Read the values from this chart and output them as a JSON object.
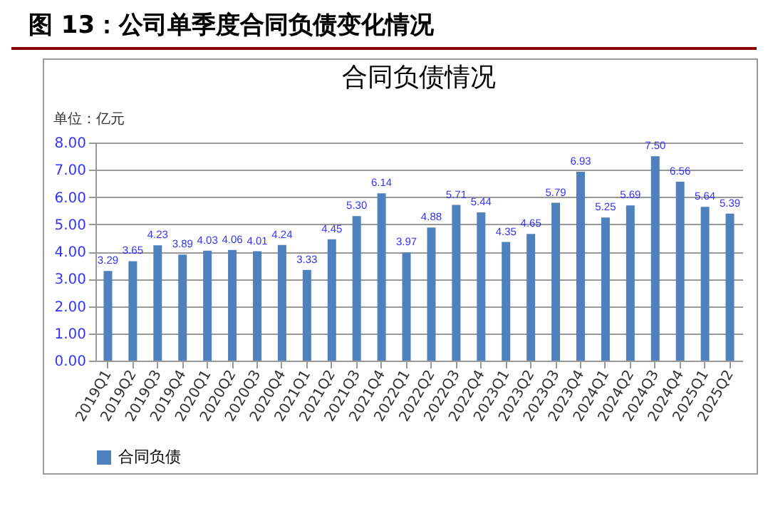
{
  "chart_data": {
    "type": "bar",
    "title": "图 13：公司单季度合同负债变化情况",
    "subtitle": "合同负债情况",
    "ylabel": "单位：亿元",
    "categories": [
      "2019Q1",
      "2019Q2",
      "2019Q3",
      "2019Q4",
      "2020Q1",
      "2020Q2",
      "2020Q3",
      "2020Q4",
      "2021Q1",
      "2021Q2",
      "2021Q3",
      "2021Q4",
      "2022Q1",
      "2022Q2",
      "2022Q3",
      "2022Q4",
      "2023Q1",
      "2023Q2",
      "2023Q3",
      "2023Q4",
      "2024Q1",
      "2024Q2",
      "2024Q3",
      "2024Q4",
      "2025Q1",
      "2025Q2"
    ],
    "series": [
      {
        "name": "合同负债",
        "color": "#4f81bd",
        "values": [
          3.29,
          3.65,
          4.23,
          3.89,
          4.03,
          4.06,
          4.01,
          4.24,
          3.33,
          4.45,
          5.3,
          6.14,
          3.97,
          4.88,
          5.71,
          5.44,
          4.35,
          4.65,
          5.79,
          6.93,
          5.25,
          5.69,
          7.5,
          6.56,
          5.64,
          5.39
        ]
      }
    ],
    "ylim": [
      0,
      8
    ],
    "yticks": [
      {
        "value": 0,
        "label": "0.00"
      },
      {
        "value": 1,
        "label": "1.00"
      },
      {
        "value": 2,
        "label": "2.00"
      },
      {
        "value": 3,
        "label": "3.00"
      },
      {
        "value": 4,
        "label": "4.00"
      },
      {
        "value": 5,
        "label": "5.00"
      },
      {
        "value": 6,
        "label": "6.00"
      },
      {
        "value": 7,
        "label": "7.00"
      },
      {
        "value": 8,
        "label": "8.00"
      }
    ],
    "value_labels": [
      "3.29",
      "3.65",
      "4.23",
      "3.89",
      "4.03",
      "4.06",
      "4.01",
      "4.24",
      "3.33",
      "4.45",
      "5.30",
      "6.14",
      "3.97",
      "4.88",
      "5.71",
      "5.44",
      "4.35",
      "4.65",
      "5.79",
      "6.93",
      "5.25",
      "5.69",
      "7.50",
      "6.56",
      "5.64",
      "5.39"
    ],
    "grid": "y",
    "legend": "bottom"
  }
}
